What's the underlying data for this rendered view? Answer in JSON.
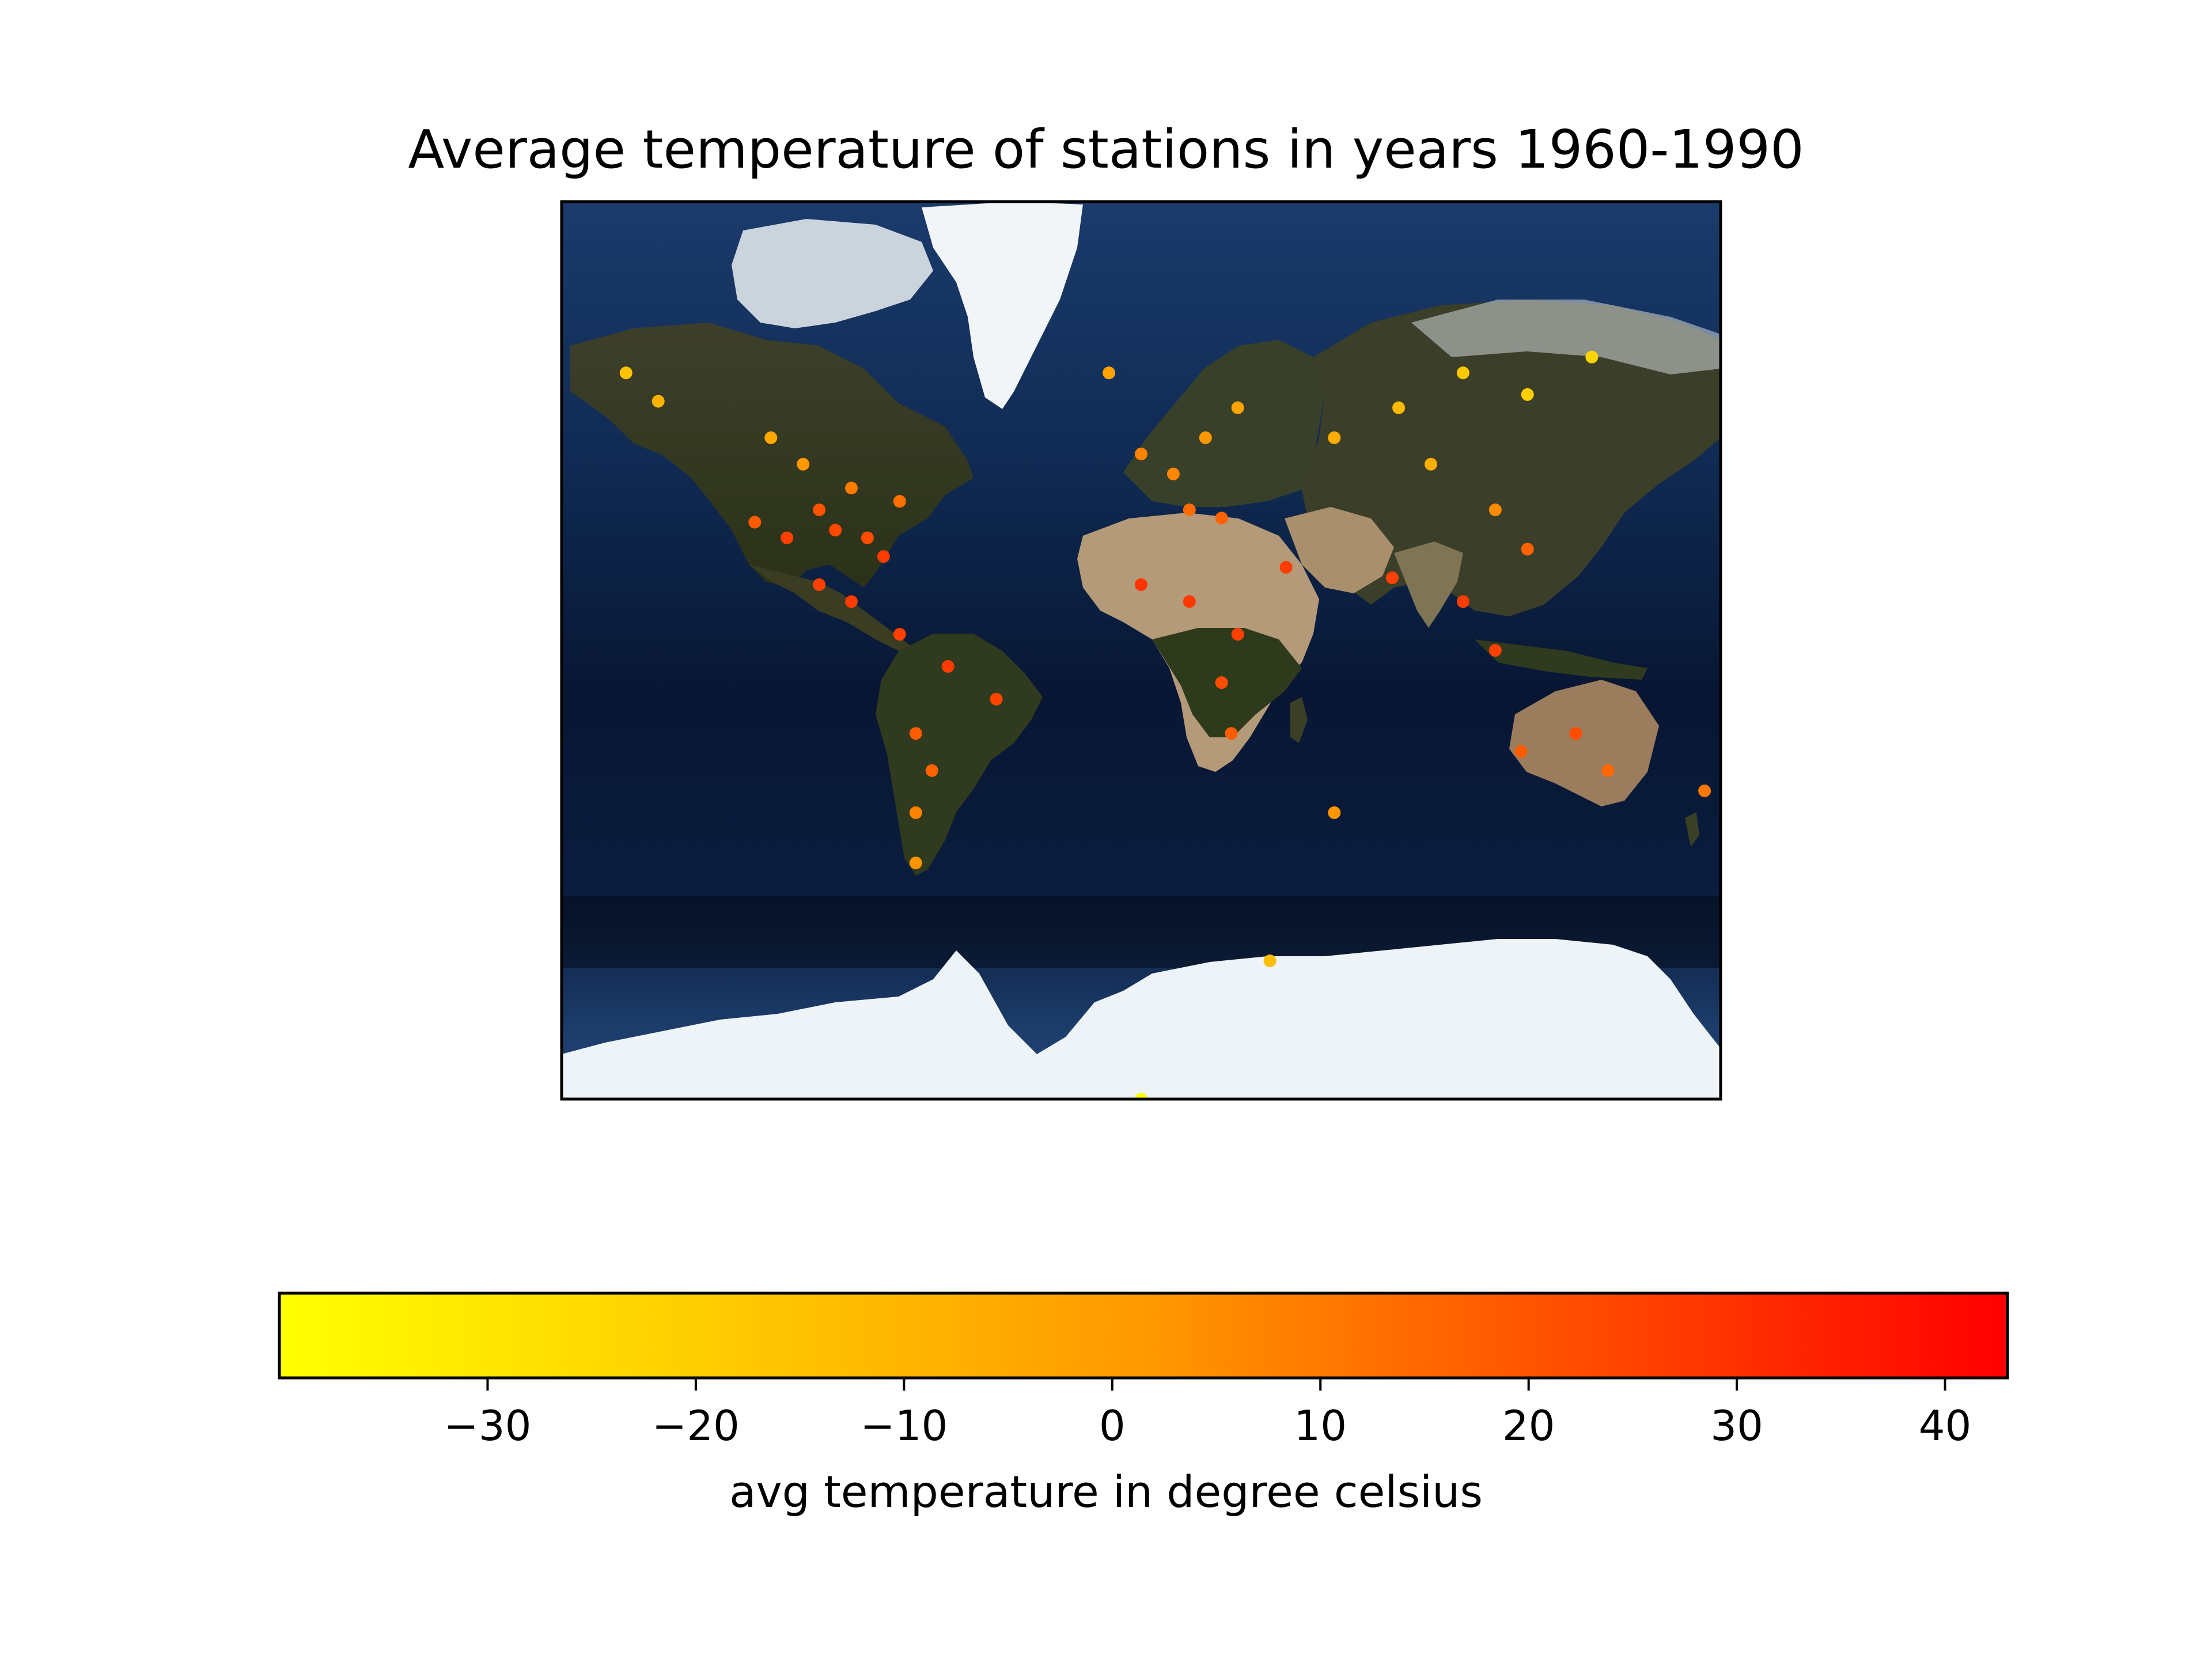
{
  "title": "Average temperature of stations in years 1960-1990",
  "colorbar": {
    "label": "avg temperature in degree celsius",
    "min": -40,
    "max": 43,
    "ticks": [
      -30,
      -20,
      -10,
      0,
      10,
      20,
      30,
      40
    ],
    "tick_labels": [
      "−30",
      "−20",
      "−10",
      "0",
      "10",
      "20",
      "30",
      "40"
    ],
    "colormap": [
      "#ffff00",
      "#ffa500",
      "#ff0000"
    ]
  },
  "map": {
    "projection": "Mercator",
    "background": "satellite imagery (blue marble)",
    "lon_range": [
      -180,
      180
    ],
    "lat_range": [
      -80,
      80
    ]
  },
  "chart_data": {
    "type": "scatter",
    "title": "Average temperature of stations in years 1960-1990",
    "xlabel": "",
    "ylabel": "",
    "colorbar_label": "avg temperature in degree celsius",
    "points": [
      {
        "lon": -100,
        "lat": 40,
        "temp": 22
      },
      {
        "lon": -95,
        "lat": 35,
        "temp": 25
      },
      {
        "lon": -85,
        "lat": 33,
        "temp": 24
      },
      {
        "lon": -80,
        "lat": 28,
        "temp": 28
      },
      {
        "lon": -110,
        "lat": 33,
        "temp": 27
      },
      {
        "lon": -120,
        "lat": 37,
        "temp": 20
      },
      {
        "lon": -75,
        "lat": 42,
        "temp": 15
      },
      {
        "lon": -90,
        "lat": 45,
        "temp": 12
      },
      {
        "lon": -105,
        "lat": 50,
        "temp": 5
      },
      {
        "lon": -115,
        "lat": 55,
        "temp": 0
      },
      {
        "lon": -150,
        "lat": 61,
        "temp": -5
      },
      {
        "lon": -160,
        "lat": 65,
        "temp": -12
      },
      {
        "lon": -100,
        "lat": 20,
        "temp": 27
      },
      {
        "lon": -90,
        "lat": 15,
        "temp": 28
      },
      {
        "lon": -75,
        "lat": 5,
        "temp": 27
      },
      {
        "lon": -60,
        "lat": -5,
        "temp": 28
      },
      {
        "lon": -45,
        "lat": -15,
        "temp": 26
      },
      {
        "lon": -70,
        "lat": -25,
        "temp": 20
      },
      {
        "lon": -65,
        "lat": -35,
        "temp": 18
      },
      {
        "lon": -70,
        "lat": -45,
        "temp": 10
      },
      {
        "lon": -70,
        "lat": -55,
        "temp": 6
      },
      {
        "lon": -10,
        "lat": 65,
        "temp": 2
      },
      {
        "lon": 0,
        "lat": 52,
        "temp": 10
      },
      {
        "lon": 10,
        "lat": 48,
        "temp": 9
      },
      {
        "lon": 20,
        "lat": 55,
        "temp": 5
      },
      {
        "lon": 30,
        "lat": 60,
        "temp": 2
      },
      {
        "lon": 15,
        "lat": 40,
        "temp": 16
      },
      {
        "lon": 25,
        "lat": 38,
        "temp": 18
      },
      {
        "lon": 0,
        "lat": 20,
        "temp": 30
      },
      {
        "lon": 15,
        "lat": 15,
        "temp": 29
      },
      {
        "lon": 30,
        "lat": 5,
        "temp": 27
      },
      {
        "lon": 25,
        "lat": -10,
        "temp": 24
      },
      {
        "lon": 28,
        "lat": -25,
        "temp": 20
      },
      {
        "lon": 45,
        "lat": 25,
        "temp": 28
      },
      {
        "lon": 60,
        "lat": 55,
        "temp": -2
      },
      {
        "lon": 80,
        "lat": 60,
        "temp": -8
      },
      {
        "lon": 100,
        "lat": 65,
        "temp": -15
      },
      {
        "lon": 120,
        "lat": 62,
        "temp": -18
      },
      {
        "lon": 140,
        "lat": 67,
        "temp": -20
      },
      {
        "lon": 90,
        "lat": 50,
        "temp": -3
      },
      {
        "lon": 110,
        "lat": 40,
        "temp": 8
      },
      {
        "lon": 120,
        "lat": 30,
        "temp": 18
      },
      {
        "lon": 78,
        "lat": 22,
        "temp": 27
      },
      {
        "lon": 100,
        "lat": 15,
        "temp": 28
      },
      {
        "lon": 110,
        "lat": 0,
        "temp": 27
      },
      {
        "lon": 135,
        "lat": -25,
        "temp": 24
      },
      {
        "lon": 145,
        "lat": -35,
        "temp": 17
      },
      {
        "lon": 118,
        "lat": -30,
        "temp": 20
      },
      {
        "lon": 175,
        "lat": -40,
        "temp": 13
      },
      {
        "lon": 60,
        "lat": -45,
        "temp": 5
      },
      {
        "lon": 40,
        "lat": -69,
        "temp": -10
      },
      {
        "lon": 0,
        "lat": -80,
        "temp": -40
      }
    ]
  }
}
